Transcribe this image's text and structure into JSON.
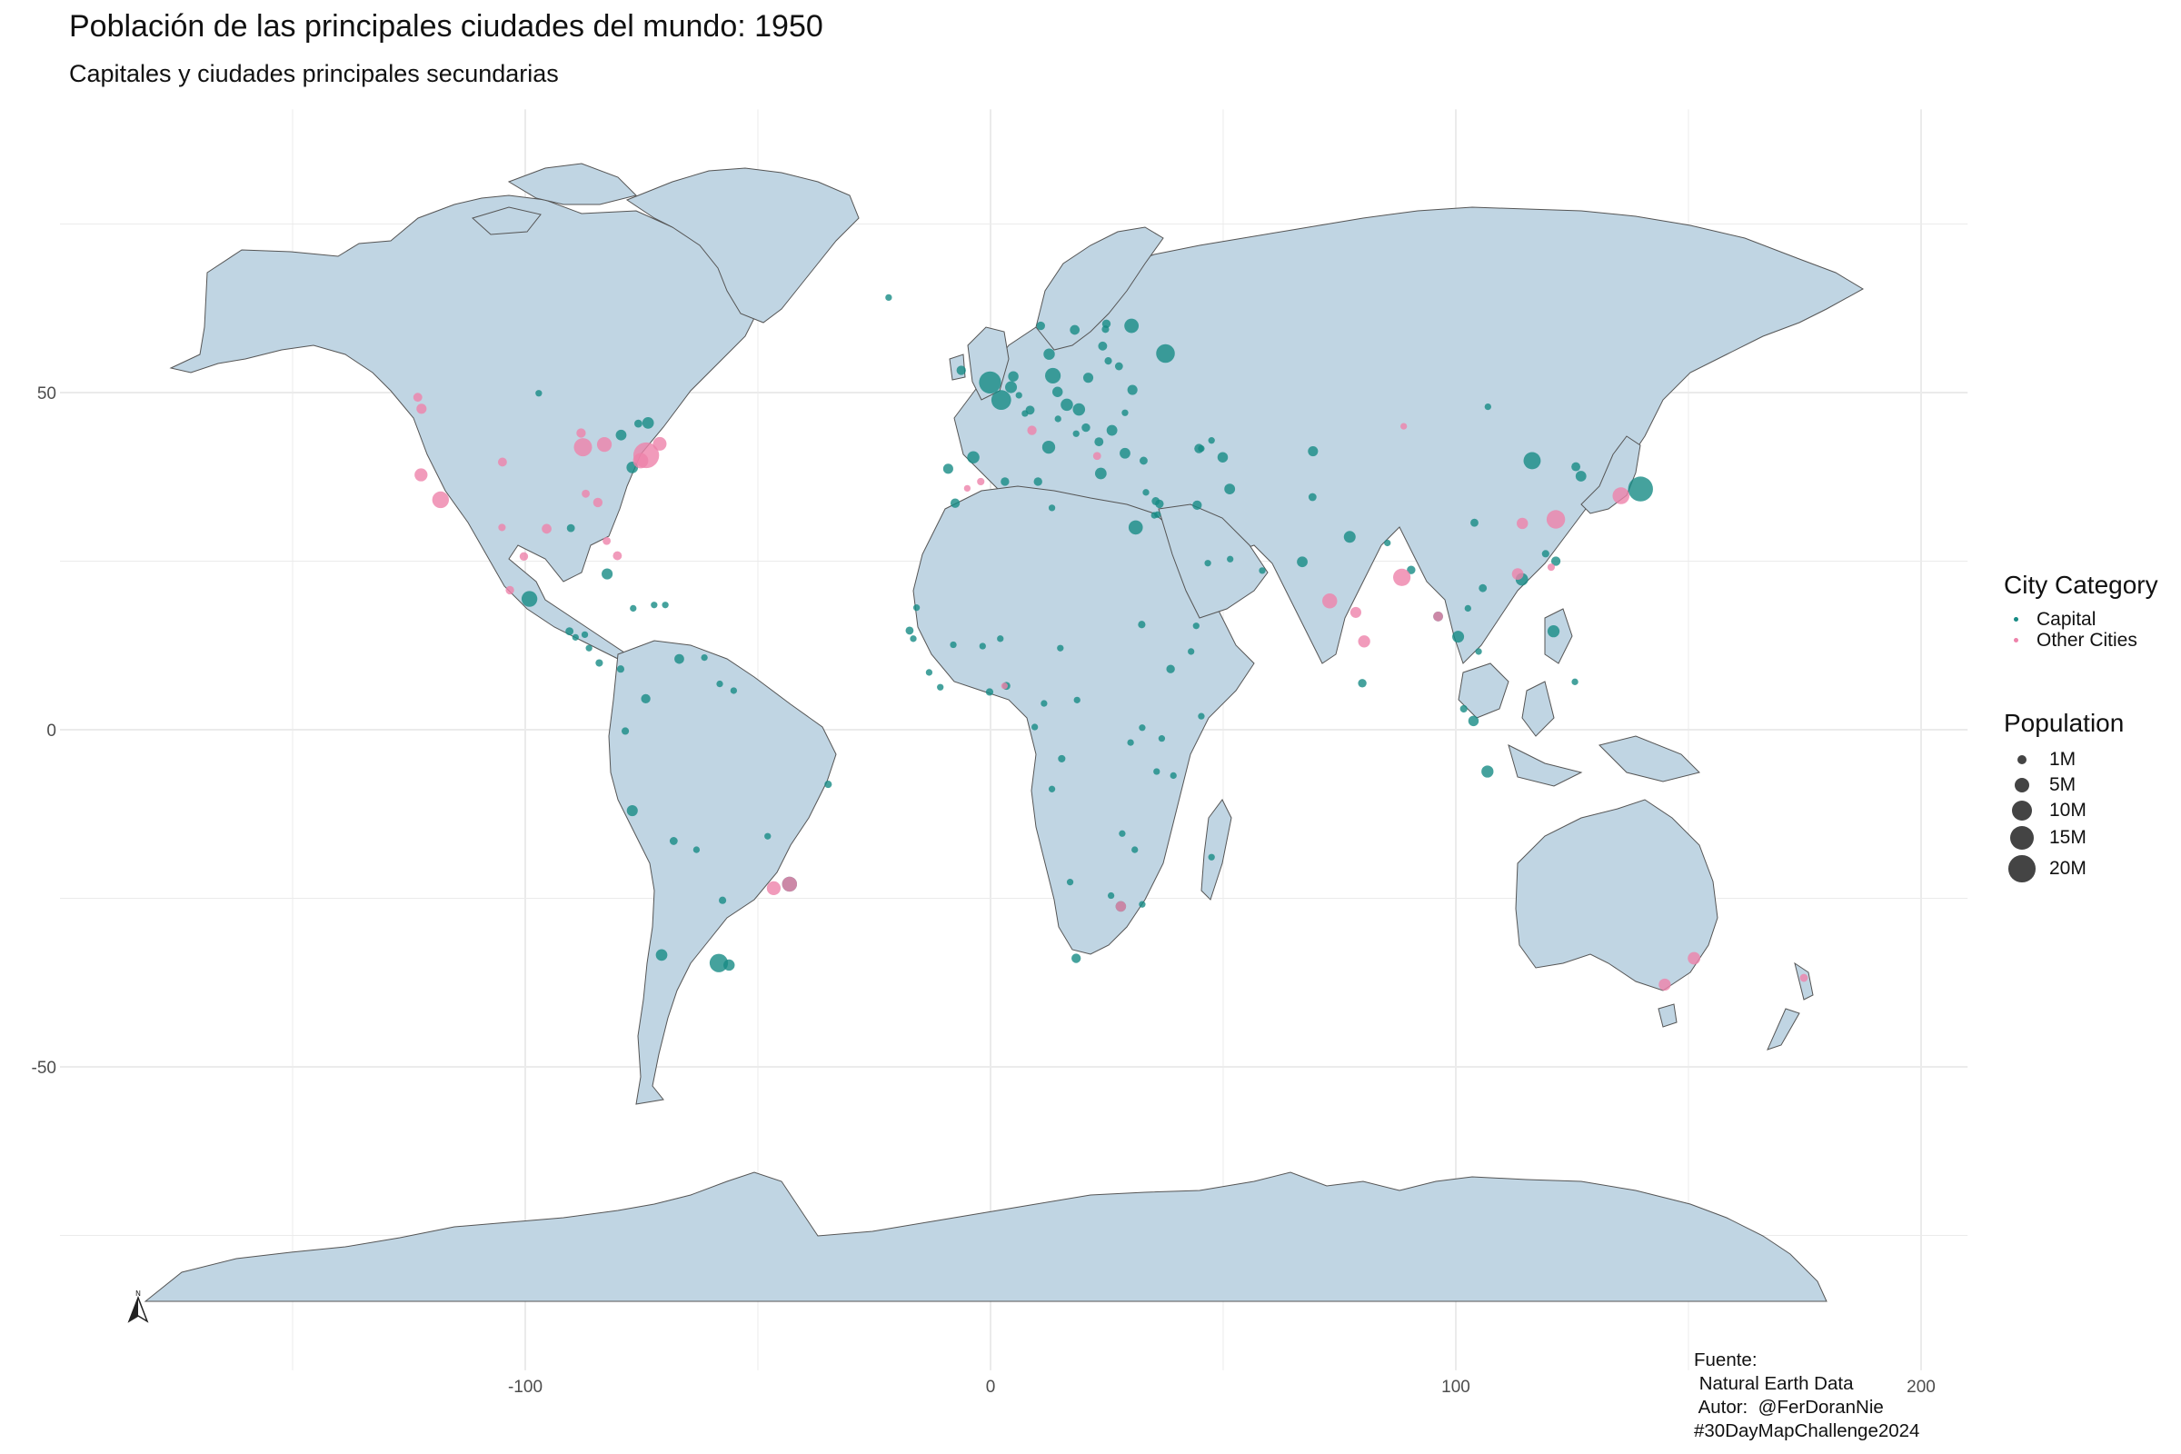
{
  "title": "Población de las principales ciudades del mundo: 1950",
  "subtitle": "Capitales y ciudades principales secundarias",
  "axes": {
    "x_ticks": [
      {
        "value": -100,
        "label": "-100"
      },
      {
        "value": 0,
        "label": "0"
      },
      {
        "value": 100,
        "label": "100"
      },
      {
        "value": 200,
        "label": "200"
      }
    ],
    "y_ticks": [
      {
        "value": 50,
        "label": "50"
      },
      {
        "value": 0,
        "label": "0"
      },
      {
        "value": -50,
        "label": "-50"
      }
    ],
    "xlim": [
      -200,
      210
    ],
    "ylim": [
      -95,
      92
    ],
    "grid": "on"
  },
  "colors": {
    "land": "#c0d5e3",
    "border": "#555555",
    "grid": "#ebebeb",
    "capital": "#178b84",
    "other": "#ee82aa",
    "size_key": "#444444"
  },
  "legend": {
    "category_title": "City Category",
    "categories": [
      {
        "label": "Capital",
        "key": "capital"
      },
      {
        "label": "Other Cities",
        "key": "other"
      }
    ],
    "size_title": "Population",
    "sizes": [
      {
        "label": "1M",
        "value": 1
      },
      {
        "label": "5M",
        "value": 5
      },
      {
        "label": "10M",
        "value": 10
      },
      {
        "label": "15M",
        "value": 15
      },
      {
        "label": "20M",
        "value": 20
      }
    ]
  },
  "caption": {
    "line1": "Fuente:",
    "line2": " Natural Earth Data",
    "line3": " Autor:  @FerDoranNie",
    "line4": "#30DayMapChallenge2024"
  },
  "north_arrow": {
    "letter": "N",
    "icon": "north-arrow-icon"
  },
  "chart_data": {
    "type": "scatter",
    "x_unit": "longitude",
    "y_unit": "latitude",
    "size_unit": "population (millions)",
    "series": [
      {
        "key": "capital",
        "points": [
          [
            -0.1,
            51.5,
            8.4
          ],
          [
            2.3,
            48.9,
            6.3
          ],
          [
            13.4,
            52.5,
            3.3
          ],
          [
            37.6,
            55.8,
            5.4
          ],
          [
            139.7,
            35.7,
            11.3
          ],
          [
            -58.4,
            -34.6,
            5.2
          ],
          [
            -99.1,
            19.4,
            3.4
          ],
          [
            116.4,
            39.9,
            4.3
          ],
          [
            -77.0,
            38.9,
            1.3
          ],
          [
            -75.7,
            45.4,
            0.3
          ],
          [
            12.5,
            41.9,
            1.9
          ],
          [
            -3.7,
            40.4,
            1.6
          ],
          [
            16.4,
            48.2,
            1.6
          ],
          [
            19.0,
            47.5,
            1.6
          ],
          [
            21.0,
            52.2,
            0.8
          ],
          [
            14.4,
            50.1,
            0.9
          ],
          [
            4.9,
            52.4,
            0.9
          ],
          [
            4.4,
            50.8,
            1.4
          ],
          [
            12.6,
            55.7,
            1.2
          ],
          [
            18.1,
            59.3,
            0.7
          ],
          [
            10.8,
            59.9,
            0.4
          ],
          [
            24.9,
            60.2,
            0.4
          ],
          [
            30.5,
            50.4,
            0.8
          ],
          [
            26.1,
            44.4,
            1.0
          ],
          [
            23.3,
            42.7,
            0.5
          ],
          [
            20.5,
            44.8,
            0.4
          ],
          [
            23.7,
            38.0,
            1.3
          ],
          [
            32.9,
            39.9,
            0.3
          ],
          [
            -9.1,
            38.7,
            0.8
          ],
          [
            31.2,
            30.0,
            2.5
          ],
          [
            44.4,
            33.3,
            0.6
          ],
          [
            51.4,
            35.7,
            1.0
          ],
          [
            69.2,
            34.5,
            0.3
          ],
          [
            77.2,
            28.6,
            1.4
          ],
          [
            106.8,
            -6.2,
            1.5
          ],
          [
            100.5,
            13.8,
            1.4
          ],
          [
            121.0,
            14.6,
            1.5
          ],
          [
            126.9,
            37.6,
            1.0
          ],
          [
            125.8,
            39.0,
            0.5
          ],
          [
            105.8,
            21.0,
            0.3
          ],
          [
            96.2,
            16.8,
            0.7
          ],
          [
            -70.7,
            -33.4,
            1.3
          ],
          [
            -77.0,
            -12.0,
            1.1
          ],
          [
            -74.1,
            4.6,
            0.6
          ],
          [
            -66.9,
            10.5,
            0.7
          ],
          [
            -78.5,
            -0.2,
            0.2
          ],
          [
            -68.1,
            -16.5,
            0.3
          ],
          [
            -57.6,
            -25.3,
            0.2
          ],
          [
            -56.2,
            -34.9,
            1.2
          ],
          [
            -82.4,
            23.1,
            1.1
          ],
          [
            -90.5,
            14.6,
            0.3
          ],
          [
            -84.1,
            9.9,
            0.2
          ],
          [
            -79.5,
            9.0,
            0.2
          ],
          [
            3.4,
            6.5,
            0.3
          ],
          [
            -0.2,
            5.6,
            0.2
          ],
          [
            -17.4,
            14.7,
            0.3
          ],
          [
            36.8,
            -1.3,
            0.1
          ],
          [
            38.7,
            9.0,
            0.4
          ],
          [
            32.5,
            15.6,
            0.2
          ],
          [
            -7.6,
            33.6,
            0.6
          ],
          [
            3.1,
            36.8,
            0.4
          ],
          [
            10.2,
            36.8,
            0.4
          ],
          [
            13.2,
            32.9,
            0.1
          ],
          [
            15.3,
            -4.3,
            0.2
          ],
          [
            28.0,
            -26.2,
            0.9
          ],
          [
            18.4,
            -33.9,
            0.6
          ],
          [
            35.2,
            31.8,
            0.1
          ],
          [
            36.3,
            33.5,
            0.4
          ],
          [
            35.5,
            33.9,
            0.3
          ],
          [
            -43.2,
            -22.9,
            2.9
          ],
          [
            -47.9,
            -15.8,
            0.1
          ],
          [
            67.0,
            24.9,
            1.0
          ],
          [
            90.4,
            23.7,
            0.4
          ],
          [
            85.3,
            27.7,
            0.1
          ],
          [
            79.9,
            6.9,
            0.4
          ],
          [
            101.7,
            3.1,
            0.2
          ],
          [
            103.8,
            1.3,
            0.9
          ],
          [
            114.2,
            22.3,
            1.7
          ],
          [
            121.5,
            25.0,
            0.6
          ],
          [
            47.5,
            42.9,
            0.1
          ],
          [
            44.8,
            41.7,
            0.6
          ],
          [
            49.9,
            40.4,
            0.9
          ],
          [
            69.3,
            41.3,
            0.8
          ],
          [
            27.6,
            53.9,
            0.3
          ],
          [
            24.1,
            56.9,
            0.5
          ],
          [
            25.3,
            54.7,
            0.2
          ],
          [
            24.7,
            59.4,
            0.2
          ],
          [
            28.9,
            47.0,
            0.1
          ],
          [
            18.4,
            43.9,
            0.1
          ],
          [
            14.5,
            46.1,
            0.1
          ],
          [
            -6.3,
            53.3,
            0.6
          ],
          [
            8.5,
            47.4,
            0.5
          ],
          [
            7.4,
            46.9,
            0.1
          ],
          [
            6.1,
            49.6,
            0.1
          ],
          [
            -1.7,
            12.4,
            0.1
          ],
          [
            2.1,
            13.5,
            0.1
          ],
          [
            -8.0,
            12.6,
            0.1
          ],
          [
            -13.2,
            8.5,
            0.1
          ],
          [
            -10.8,
            6.3,
            0.1
          ],
          [
            -16.6,
            13.5,
            0.1
          ],
          [
            15.0,
            12.1,
            0.1
          ],
          [
            18.6,
            4.4,
            0.1
          ],
          [
            11.5,
            3.9,
            0.1
          ],
          [
            9.5,
            0.4,
            0.1
          ],
          [
            30.1,
            -1.9,
            0.1
          ],
          [
            32.6,
            0.3,
            0.1
          ],
          [
            39.3,
            -6.8,
            0.1
          ],
          [
            35.7,
            -6.2,
            0.1
          ],
          [
            28.3,
            -15.4,
            0.1
          ],
          [
            31.0,
            -17.8,
            0.1
          ],
          [
            32.6,
            -25.9,
            0.1
          ],
          [
            13.2,
            -8.8,
            0.1
          ],
          [
            17.1,
            -22.6,
            0.1
          ],
          [
            25.9,
            -24.6,
            0.1
          ],
          [
            47.5,
            -18.9,
            0.1
          ],
          [
            45.3,
            2.0,
            0.1
          ],
          [
            43.1,
            11.6,
            0.1
          ],
          [
            -15.9,
            18.1,
            0.1
          ],
          [
            -90.2,
            29.9,
            0.3
          ],
          [
            -97.1,
            49.9,
            0.1
          ],
          [
            -72.3,
            18.5,
            0.1
          ],
          [
            -69.9,
            18.5,
            0.1
          ],
          [
            -86.3,
            12.1,
            0.1
          ],
          [
            -87.2,
            14.1,
            0.1
          ],
          [
            -89.2,
            13.7,
            0.1
          ],
          [
            -76.8,
            18.0,
            0.1
          ],
          [
            -61.5,
            10.7,
            0.1
          ],
          [
            -58.2,
            6.8,
            0.1
          ],
          [
            -55.2,
            5.8,
            0.1
          ],
          [
            -63.2,
            -17.8,
            0.1
          ],
          [
            -34.9,
            -8.1,
            0.2
          ],
          [
            104.9,
            11.6,
            0.1
          ],
          [
            102.6,
            18.0,
            0.1
          ],
          [
            104.0,
            30.7,
            0.3
          ],
          [
            106.9,
            47.9,
            0.1
          ],
          [
            119.3,
            26.1,
            0.2
          ],
          [
            46.7,
            24.7,
            0.1
          ],
          [
            45.3,
            41.7,
            0.1
          ],
          [
            58.4,
            23.6,
            0.1
          ],
          [
            51.5,
            25.3,
            0.1
          ],
          [
            44.2,
            15.4,
            0.1
          ],
          [
            35.9,
            31.9,
            0.1
          ],
          [
            33.4,
            35.2,
            0.1
          ],
          [
            125.6,
            7.1,
            0.1
          ],
          [
            -73.6,
            45.5,
            1.3
          ],
          [
            -79.4,
            43.7,
            1.0
          ],
          [
            30.3,
            59.9,
            2.6
          ],
          [
            28.9,
            41.0,
            1.0
          ],
          [
            -21.9,
            64.1,
            0.1
          ]
        ]
      },
      {
        "key": "other",
        "points": [
          [
            -74.0,
            40.7,
            12.3
          ],
          [
            -87.6,
            41.9,
            5.0
          ],
          [
            -118.2,
            34.1,
            4.0
          ],
          [
            -122.4,
            37.8,
            1.9
          ],
          [
            -71.1,
            42.4,
            2.2
          ],
          [
            -75.2,
            39.9,
            3.1
          ],
          [
            -83.0,
            42.3,
            2.8
          ],
          [
            -80.2,
            25.8,
            0.5
          ],
          [
            -95.4,
            29.8,
            0.7
          ],
          [
            -104.9,
            39.7,
            0.5
          ],
          [
            -122.3,
            47.6,
            0.8
          ],
          [
            -123.1,
            49.3,
            0.5
          ],
          [
            -84.4,
            33.7,
            0.6
          ],
          [
            -100.3,
            25.7,
            0.4
          ],
          [
            -103.3,
            20.7,
            0.4
          ],
          [
            -46.6,
            -23.5,
            2.3
          ],
          [
            -43.2,
            -22.9,
            2.9
          ],
          [
            121.5,
            31.2,
            5.3
          ],
          [
            135.5,
            34.7,
            4.1
          ],
          [
            88.4,
            22.6,
            4.5
          ],
          [
            72.9,
            19.1,
            2.9
          ],
          [
            80.3,
            13.1,
            1.5
          ],
          [
            78.5,
            17.4,
            1.1
          ],
          [
            114.3,
            30.6,
            1.2
          ],
          [
            113.3,
            23.1,
            1.3
          ],
          [
            151.2,
            -33.9,
            1.7
          ],
          [
            144.9,
            -37.8,
            1.5
          ],
          [
            174.8,
            -36.8,
            0.3
          ],
          [
            -5.0,
            35.8,
            0.1
          ],
          [
            8.9,
            44.4,
            0.6
          ],
          [
            22.9,
            40.6,
            0.3
          ],
          [
            28.0,
            -26.2,
            0.9
          ],
          [
            3.0,
            6.5,
            0.1
          ],
          [
            -2.1,
            36.8,
            0.2
          ],
          [
            120.5,
            24.1,
            0.2
          ],
          [
            -105.0,
            30.0,
            0.2
          ],
          [
            96.2,
            16.8,
            0.7
          ],
          [
            -87.0,
            35.0,
            0.3
          ],
          [
            -88.0,
            44.0,
            0.6
          ],
          [
            -82.5,
            28.0,
            0.3
          ],
          [
            88.8,
            45.0,
            0.1
          ]
        ]
      }
    ]
  }
}
